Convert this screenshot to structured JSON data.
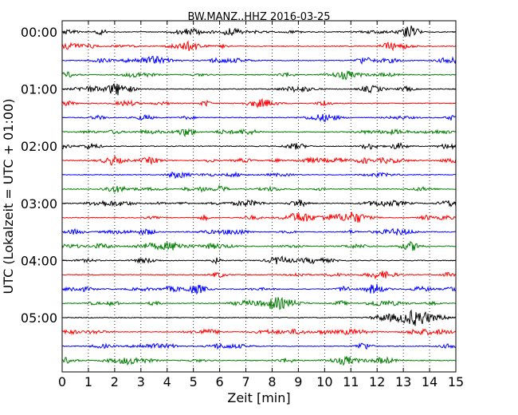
{
  "chart_data": {
    "type": "line",
    "subtype": "helicorder",
    "title": "BW.MANZ..HHZ 2016-03-25",
    "xlabel": "Zeit  [min]",
    "ylabel": "UTC (Lokalzeit = UTC + 01:00)",
    "xlim": [
      0,
      15
    ],
    "x_ticks": [
      "0",
      "1",
      "2",
      "3",
      "4",
      "5",
      "6",
      "7",
      "8",
      "9",
      "10",
      "11",
      "12",
      "13",
      "14",
      "15"
    ],
    "y_ticks": [
      {
        "label": "00:00",
        "row": 0
      },
      {
        "label": "01:00",
        "row": 4
      },
      {
        "label": "02:00",
        "row": 8
      },
      {
        "label": "03:00",
        "row": 12
      },
      {
        "label": "04:00",
        "row": 16
      },
      {
        "label": "05:00",
        "row": 20
      }
    ],
    "minutes_per_row": 15,
    "row_count": 24,
    "trace_colors": [
      "#000000",
      "#ff0000",
      "#0000ff",
      "#007f00"
    ],
    "vertical_grid": "dotted, every minute",
    "series": [
      {
        "row": 0,
        "start": "00:00"
      },
      {
        "row": 1,
        "start": "00:15"
      },
      {
        "row": 2,
        "start": "00:30"
      },
      {
        "row": 3,
        "start": "00:45"
      },
      {
        "row": 4,
        "start": "01:00"
      },
      {
        "row": 5,
        "start": "01:15"
      },
      {
        "row": 6,
        "start": "01:30"
      },
      {
        "row": 7,
        "start": "01:45"
      },
      {
        "row": 8,
        "start": "02:00"
      },
      {
        "row": 9,
        "start": "02:15"
      },
      {
        "row": 10,
        "start": "02:30"
      },
      {
        "row": 11,
        "start": "02:45"
      },
      {
        "row": 12,
        "start": "03:00"
      },
      {
        "row": 13,
        "start": "03:15"
      },
      {
        "row": 14,
        "start": "03:30"
      },
      {
        "row": 15,
        "start": "03:45"
      },
      {
        "row": 16,
        "start": "04:00"
      },
      {
        "row": 17,
        "start": "04:15"
      },
      {
        "row": 18,
        "start": "04:30"
      },
      {
        "row": 19,
        "start": "04:45"
      },
      {
        "row": 20,
        "start": "05:00"
      },
      {
        "row": 21,
        "start": "05:15"
      },
      {
        "row": 22,
        "start": "05:30"
      },
      {
        "row": 23,
        "start": "05:45"
      }
    ]
  }
}
